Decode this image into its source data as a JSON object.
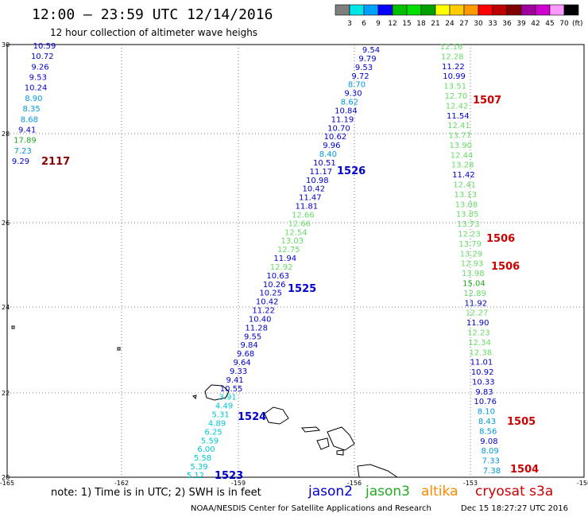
{
  "title": "12:00 – 23:59 UTC 12/14/2016",
  "subtitle": "12 hour collection of altimeter wave heighs",
  "colorbar": {
    "labels": [
      "3",
      "6",
      "9",
      "12",
      "15",
      "18",
      "21",
      "24",
      "27",
      "30",
      "33",
      "36",
      "39",
      "42",
      "45",
      "70"
    ],
    "unit": "(ft)",
    "colors": [
      "#7f7f7f",
      "#00e5e5",
      "#00a0ff",
      "#0000ff",
      "#00c000",
      "#00e000",
      "#00a000",
      "#ffff00",
      "#ffcc00",
      "#ff9900",
      "#ff0000",
      "#c00000",
      "#800000",
      "#a000a0",
      "#d000d0",
      "#ff99ff",
      "#000000"
    ]
  },
  "axes": {
    "lon_labels": [
      "-165",
      "-162",
      "-159",
      "-156",
      "-153",
      "-150"
    ],
    "lat_labels": [
      "30",
      "28",
      "26",
      "24",
      "22",
      "20"
    ]
  },
  "colors": {
    "jason2": "#0000cc",
    "jason3": "#22aa22",
    "altika": "#ff8800",
    "cryosat": "#cc0000",
    "cyan": "#00c8d0",
    "lightgreen": "#66dd66",
    "sky": "#0099dd"
  },
  "tracks": {
    "west": [
      {
        "t": "10.59",
        "c": "jason2"
      },
      {
        "t": "10.72",
        "c": "jason2"
      },
      {
        "t": "9.26",
        "c": "jason2"
      },
      {
        "t": "9.53",
        "c": "jason2"
      },
      {
        "t": "10.24",
        "c": "jason2"
      },
      {
        "t": "8.90",
        "c": "sky"
      },
      {
        "t": "8.35",
        "c": "sky"
      },
      {
        "t": "8.68",
        "c": "sky"
      },
      {
        "t": "9.41",
        "c": "jason2"
      },
      {
        "t": "17.89",
        "c": "jason3"
      },
      {
        "t": "7.23",
        "c": "sky"
      },
      {
        "t": "9.29",
        "c": "jason2"
      }
    ],
    "diag": [
      {
        "t": "9.54",
        "c": "jason2"
      },
      {
        "t": "9.79",
        "c": "jason2"
      },
      {
        "t": "9.53",
        "c": "jason2"
      },
      {
        "t": "9.72",
        "c": "jason2"
      },
      {
        "t": "8.70",
        "c": "sky"
      },
      {
        "t": "9.30",
        "c": "jason2"
      },
      {
        "t": "8.62",
        "c": "sky"
      },
      {
        "t": "10.84",
        "c": "jason2"
      },
      {
        "t": "11.19",
        "c": "jason2"
      },
      {
        "t": "10.70",
        "c": "jason2"
      },
      {
        "t": "10.62",
        "c": "jason2"
      },
      {
        "t": "9.96",
        "c": "jason2"
      },
      {
        "t": "8.40",
        "c": "sky"
      },
      {
        "t": "10.51",
        "c": "jason2"
      },
      {
        "t": "11.17",
        "c": "jason2"
      },
      {
        "t": "10.98",
        "c": "jason2"
      },
      {
        "t": "10.42",
        "c": "jason2"
      },
      {
        "t": "11.47",
        "c": "jason2"
      },
      {
        "t": "11.81",
        "c": "jason2"
      },
      {
        "t": "12.66",
        "c": "lightgreen"
      },
      {
        "t": "12.66",
        "c": "lightgreen"
      },
      {
        "t": "12.54",
        "c": "lightgreen"
      },
      {
        "t": "13.03",
        "c": "lightgreen"
      },
      {
        "t": "12.75",
        "c": "lightgreen"
      },
      {
        "t": "11.94",
        "c": "jason2"
      },
      {
        "t": "12.92",
        "c": "lightgreen"
      },
      {
        "t": "10.63",
        "c": "jason2"
      },
      {
        "t": "10.26",
        "c": "jason2"
      },
      {
        "t": "10.25",
        "c": "jason2"
      },
      {
        "t": "10.42",
        "c": "jason2"
      },
      {
        "t": "11.22",
        "c": "jason2"
      },
      {
        "t": "10.40",
        "c": "jason2"
      },
      {
        "t": "11.28",
        "c": "jason2"
      },
      {
        "t": "9.55",
        "c": "jason2"
      },
      {
        "t": "9.84",
        "c": "jason2"
      },
      {
        "t": "9.68",
        "c": "jason2"
      },
      {
        "t": "9.64",
        "c": "jason2"
      },
      {
        "t": "9.33",
        "c": "jason2"
      },
      {
        "t": "9.41",
        "c": "jason2"
      },
      {
        "t": "10.55",
        "c": "jason2"
      },
      {
        "t": "3.91",
        "c": "cyan"
      },
      {
        "t": "4.49",
        "c": "cyan"
      },
      {
        "t": "5.31",
        "c": "cyan"
      },
      {
        "t": "4.89",
        "c": "cyan"
      },
      {
        "t": "6.25",
        "c": "cyan"
      },
      {
        "t": "5.59",
        "c": "cyan"
      },
      {
        "t": "6.00",
        "c": "cyan"
      },
      {
        "t": "5.58",
        "c": "cyan"
      },
      {
        "t": "5.39",
        "c": "cyan"
      },
      {
        "t": "5.12",
        "c": "cyan"
      }
    ],
    "east": [
      {
        "t": "12.16",
        "c": "lightgreen"
      },
      {
        "t": "12.28",
        "c": "lightgreen"
      },
      {
        "t": "11.22",
        "c": "jason2"
      },
      {
        "t": "10.99",
        "c": "jason2"
      },
      {
        "t": "13.51",
        "c": "lightgreen"
      },
      {
        "t": "12.70",
        "c": "lightgreen"
      },
      {
        "t": "12.42",
        "c": "lightgreen"
      },
      {
        "t": "11.54",
        "c": "jason2"
      },
      {
        "t": "12.41",
        "c": "lightgreen"
      },
      {
        "t": "13.77",
        "c": "lightgreen"
      },
      {
        "t": "13.90",
        "c": "lightgreen"
      },
      {
        "t": "12.44",
        "c": "lightgreen"
      },
      {
        "t": "13.28",
        "c": "lightgreen"
      },
      {
        "t": "11.42",
        "c": "jason2"
      },
      {
        "t": "12.41",
        "c": "lightgreen"
      },
      {
        "t": "13.13",
        "c": "lightgreen"
      },
      {
        "t": "13.08",
        "c": "lightgreen"
      },
      {
        "t": "13.85",
        "c": "lightgreen"
      },
      {
        "t": "13.73",
        "c": "lightgreen"
      },
      {
        "t": "12.23",
        "c": "lightgreen"
      },
      {
        "t": "13.79",
        "c": "lightgreen"
      },
      {
        "t": "13.29",
        "c": "lightgreen"
      },
      {
        "t": "12.93",
        "c": "lightgreen"
      },
      {
        "t": "13.98",
        "c": "lightgreen"
      },
      {
        "t": "15.04",
        "c": "jason3"
      },
      {
        "t": "12.89",
        "c": "lightgreen"
      },
      {
        "t": "11.92",
        "c": "jason2"
      },
      {
        "t": "12.27",
        "c": "lightgreen"
      },
      {
        "t": "11.90",
        "c": "jason2"
      },
      {
        "t": "12.23",
        "c": "lightgreen"
      },
      {
        "t": "12.34",
        "c": "lightgreen"
      },
      {
        "t": "12.38",
        "c": "lightgreen"
      },
      {
        "t": "11.01",
        "c": "jason2"
      },
      {
        "t": "10.92",
        "c": "jason2"
      },
      {
        "t": "10.33",
        "c": "jason2"
      },
      {
        "t": "9.83",
        "c": "jason2"
      },
      {
        "t": "10.76",
        "c": "jason2"
      },
      {
        "t": "8.10",
        "c": "sky"
      },
      {
        "t": "8.43",
        "c": "sky"
      },
      {
        "t": "8.56",
        "c": "sky"
      },
      {
        "t": "9.08",
        "c": "jason2"
      },
      {
        "t": "8.09",
        "c": "sky"
      },
      {
        "t": "7.33",
        "c": "sky"
      },
      {
        "t": "7.38",
        "c": "sky"
      }
    ]
  },
  "track_ids": [
    {
      "t": "2117",
      "c": "#8b0000"
    },
    {
      "t": "1526",
      "c": "#0000cc"
    },
    {
      "t": "1525",
      "c": "#0000cc"
    },
    {
      "t": "1524",
      "c": "#0000cc"
    },
    {
      "t": "1523",
      "c": "#0000cc"
    },
    {
      "t": "1507",
      "c": "#cc0000"
    },
    {
      "t": "1506",
      "c": "#cc0000"
    },
    {
      "t": "1506",
      "c": "#cc0000"
    },
    {
      "t": "1505",
      "c": "#cc0000"
    },
    {
      "t": "1504",
      "c": "#cc0000"
    }
  ],
  "footer": {
    "note": "note: 1) Time is in UTC; 2) SWH is in feet",
    "legend": [
      {
        "t": "jason2",
        "c": "#0000cc"
      },
      {
        "t": "jason3",
        "c": "#22aa22"
      },
      {
        "t": "altika",
        "c": "#ff8800"
      },
      {
        "t": "cryosat s3a",
        "c": "#cc0000"
      }
    ],
    "credit": "NOAA/NESDIS Center for Satellite Applications and Research",
    "timestamp": "Dec 15 18:27:27 UTC 2016"
  }
}
